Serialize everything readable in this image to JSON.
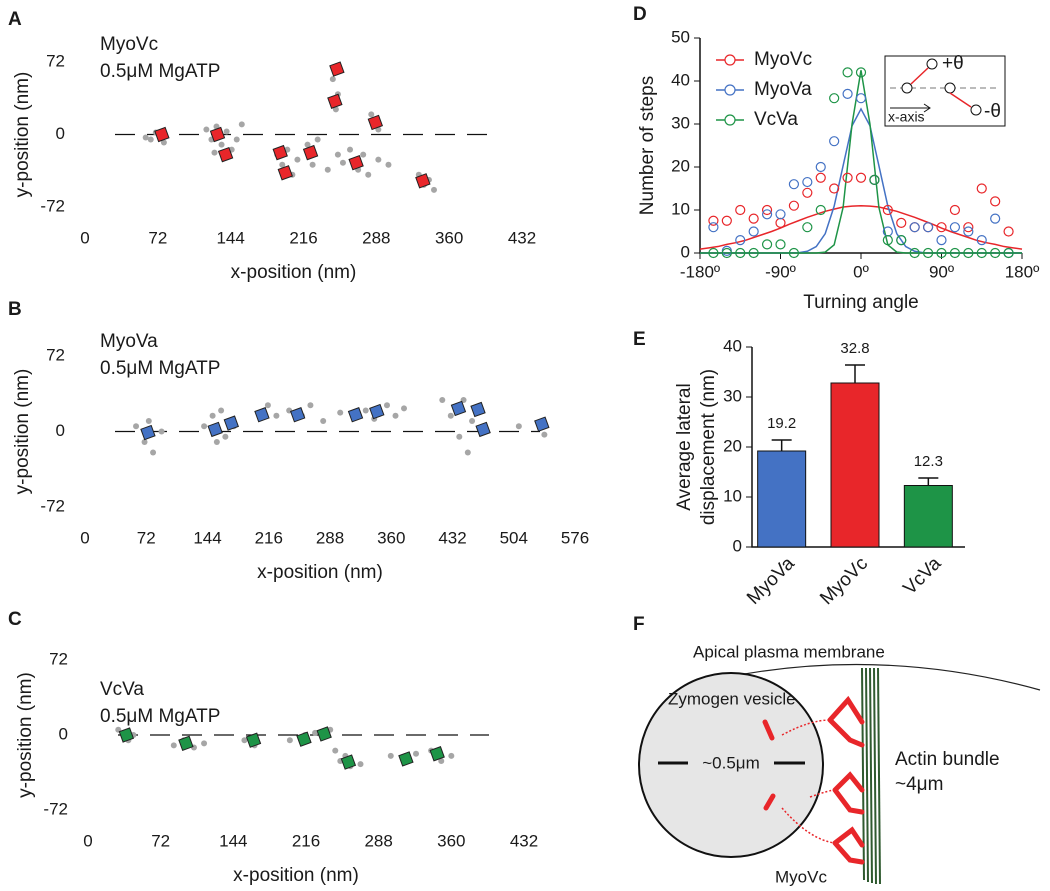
{
  "chart_data": [
    {
      "type": "scatter",
      "panel": "A",
      "annotations": [
        "MyoVc",
        "0.5μM MgATP"
      ],
      "xlabel": "x-position (nm)",
      "ylabel": "y-position (nm)",
      "xlim": [
        0,
        432
      ],
      "xticks": [
        0,
        72,
        144,
        216,
        288,
        360,
        432
      ],
      "ylim": [
        -72,
        72
      ],
      "yticks": [
        -72,
        0,
        72
      ],
      "points": {
        "color": "#a6a6a6",
        "x": [
          60,
          65,
          70,
          78,
          120,
          125,
          130,
          135,
          140,
          145,
          150,
          155,
          128,
          190,
          195,
          200,
          205,
          210,
          220,
          225,
          230,
          240,
          250,
          255,
          262,
          270,
          275,
          280,
          290,
          245,
          250,
          248,
          283,
          290,
          300,
          330,
          335,
          340,
          345
        ],
        "y": [
          -3,
          -5,
          2,
          -8,
          5,
          -5,
          8,
          -10,
          3,
          -15,
          -5,
          10,
          -18,
          -20,
          -30,
          -15,
          -40,
          -25,
          -10,
          -30,
          -5,
          -35,
          -20,
          -28,
          -15,
          -35,
          -20,
          -40,
          -25,
          55,
          40,
          25,
          20,
          5,
          -30,
          -40,
          -50,
          -45,
          -55
        ]
      },
      "steps": {
        "color": "#e8262a",
        "x": [
          76,
          131,
          139,
          193,
          198,
          223,
          249,
          247,
          268,
          287,
          334
        ],
        "y": [
          0,
          0,
          -20,
          -18,
          -38,
          -18,
          65,
          33,
          -28,
          12,
          -46
        ]
      }
    },
    {
      "type": "scatter",
      "panel": "B",
      "annotations": [
        "MyoVa",
        "0.5μM MgATP"
      ],
      "xlabel": "x-position (nm)",
      "ylabel": "y-position (nm)",
      "xlim": [
        0,
        576
      ],
      "xticks": [
        0,
        72,
        144,
        216,
        288,
        360,
        432,
        504,
        576
      ],
      "ylim": [
        -72,
        72
      ],
      "yticks": [
        -72,
        0,
        72
      ],
      "points": {
        "color": "#a6a6a6",
        "x": [
          60,
          70,
          80,
          90,
          75,
          140,
          150,
          160,
          165,
          170,
          175,
          155,
          215,
          225,
          240,
          255,
          265,
          280,
          300,
          330,
          340,
          355,
          365,
          375,
          420,
          430,
          440,
          450,
          455,
          445,
          510,
          540
        ],
        "y": [
          5,
          -10,
          -20,
          0,
          10,
          5,
          15,
          20,
          -5,
          10,
          5,
          -10,
          25,
          15,
          20,
          15,
          25,
          10,
          18,
          20,
          12,
          25,
          15,
          22,
          30,
          15,
          -5,
          -20,
          10,
          30,
          5,
          -3
        ]
      },
      "steps": {
        "color": "#4472c4",
        "x": [
          74,
          153,
          172,
          208,
          250,
          318,
          343,
          439,
          462,
          468,
          537
        ],
        "y": [
          -1,
          2,
          8,
          16,
          16,
          16,
          19,
          22,
          21,
          2,
          7
        ]
      }
    },
    {
      "type": "scatter",
      "panel": "C",
      "annotations": [
        "VcVa",
        "0.5μM MgATP"
      ],
      "xlabel": "x-position (nm)",
      "ylabel": "y-position (nm)",
      "xlim": [
        0,
        432
      ],
      "xticks": [
        0,
        72,
        144,
        216,
        288,
        360,
        432
      ],
      "ylim": [
        -72,
        72
      ],
      "yticks": [
        -72,
        0,
        72
      ],
      "points": {
        "color": "#a6a6a6",
        "x": [
          30,
          40,
          45,
          85,
          95,
          105,
          115,
          155,
          165,
          200,
          215,
          225,
          240,
          245,
          250,
          260,
          270,
          255,
          300,
          315,
          325,
          340,
          350,
          360
        ],
        "y": [
          5,
          -5,
          0,
          -10,
          -5,
          -12,
          -8,
          -5,
          -10,
          -5,
          0,
          2,
          5,
          -15,
          -25,
          -30,
          -28,
          -20,
          -20,
          -25,
          -18,
          -15,
          -25,
          -20
        ]
      },
      "steps": {
        "color": "#1e9447",
        "x": [
          38,
          97,
          164,
          214,
          234,
          258,
          315,
          346
        ],
        "y": [
          0,
          -8,
          -5,
          -4,
          1,
          -26,
          -23,
          -18
        ]
      }
    },
    {
      "type": "line",
      "panel": "D",
      "xlabel": "Turning angle",
      "ylabel": "Number of steps",
      "legend": "top-left",
      "inset": {
        "plus": "+θ",
        "minus": "-θ",
        "axis": "x-axis"
      },
      "xlim": [
        -180,
        180
      ],
      "xticks": [
        {
          "value": -180,
          "label": "-180º"
        },
        {
          "value": -90,
          "label": "-90º"
        },
        {
          "value": 0,
          "label": "0º"
        },
        {
          "value": 90,
          "label": "90º"
        },
        {
          "value": 180,
          "label": "180º"
        }
      ],
      "ylim": [
        0,
        50
      ],
      "yticks": [
        0,
        10,
        20,
        30,
        40,
        50
      ],
      "x": [
        -165,
        -150,
        -135,
        -120,
        -105,
        -90,
        -75,
        -60,
        -45,
        -30,
        -15,
        0,
        15,
        30,
        45,
        60,
        75,
        90,
        105,
        120,
        135,
        150,
        165
      ],
      "series": [
        {
          "name": "MyoVc",
          "color": "#e8262a",
          "values": [
            7.5,
            7.5,
            10,
            8,
            10,
            7,
            11,
            14,
            17.5,
            15,
            17.5,
            17.5,
            17,
            10,
            7,
            6,
            6,
            6,
            10,
            6,
            15,
            12,
            5
          ]
        },
        {
          "name": "MyoVa",
          "color": "#4472c4",
          "values": [
            6,
            0.5,
            3,
            5,
            9,
            9,
            16,
            16.5,
            20,
            26,
            37,
            36,
            17,
            5,
            3,
            6,
            6,
            3,
            6,
            5,
            3,
            8,
            0
          ]
        },
        {
          "name": "VcVa",
          "color": "#1e9447",
          "values": [
            0,
            0,
            0,
            0,
            2,
            2,
            0,
            6,
            10,
            36,
            42,
            42,
            17,
            3,
            3,
            0,
            0,
            0,
            0,
            0,
            0,
            0,
            0
          ]
        }
      ],
      "fit_x": [
        -180,
        -170,
        -160,
        -150,
        -140,
        -130,
        -120,
        -110,
        -100,
        -90,
        -80,
        -70,
        -60,
        -50,
        -40,
        -30,
        -20,
        -10,
        0,
        10,
        20,
        30,
        40,
        50,
        60,
        70,
        80,
        90,
        100,
        110,
        120,
        130,
        140,
        150,
        160,
        170,
        180
      ],
      "fits": [
        {
          "color": "#e8262a",
          "values": [
            0.9,
            1.2,
            1.5,
            2.0,
            2.4,
            2.9,
            3.6,
            4.3,
            5.0,
            5.8,
            6.7,
            7.5,
            8.3,
            9.0,
            9.7,
            10.2,
            10.7,
            10.9,
            11,
            10.9,
            10.7,
            10.2,
            9.7,
            9.0,
            8.3,
            7.5,
            6.7,
            5.8,
            5.0,
            4.3,
            3.6,
            2.9,
            2.4,
            2.0,
            1.5,
            1.2,
            0.9
          ]
        },
        {
          "color": "#4472c4",
          "values": [
            0,
            0,
            0,
            0,
            0,
            0,
            0,
            0,
            0,
            0,
            0,
            0.07,
            0.4,
            1.5,
            4.5,
            10.9,
            20.3,
            29.6,
            33.5,
            29.6,
            20.3,
            10.9,
            4.5,
            1.5,
            0.4,
            0.07,
            0,
            0,
            0,
            0,
            0,
            0,
            0,
            0,
            0,
            0,
            0
          ]
        },
        {
          "color": "#1e9447",
          "values": [
            0,
            0,
            0,
            0,
            0,
            0,
            0,
            0,
            0,
            0,
            0,
            0,
            0,
            0,
            0.2,
            1.9,
            10.6,
            30.0,
            42.5,
            30.0,
            10.6,
            1.9,
            0.2,
            0,
            0,
            0,
            0,
            0,
            0,
            0,
            0,
            0,
            0,
            0,
            0,
            0,
            0
          ]
        }
      ]
    },
    {
      "type": "bar",
      "panel": "E",
      "ylabel": [
        "Average lateral",
        "displacement (nm)"
      ],
      "categories": [
        "MyoVa",
        "MyoVc",
        "VcVa"
      ],
      "values": [
        19.2,
        32.8,
        12.3
      ],
      "errors": [
        2.2,
        3.6,
        1.5
      ],
      "colors": [
        "#4472c4",
        "#e8262a",
        "#1e9447"
      ],
      "ylim": [
        0,
        40
      ],
      "yticks": [
        0,
        10,
        20,
        30,
        40
      ]
    }
  ],
  "diagram": {
    "panel": "F",
    "membrane": "Apical plasma membrane",
    "vesicle": "Zymogen vesicle",
    "size": "~0.5μm",
    "bundle": "Actin bundle",
    "length": "~4μm",
    "motor": "MyoVc"
  }
}
